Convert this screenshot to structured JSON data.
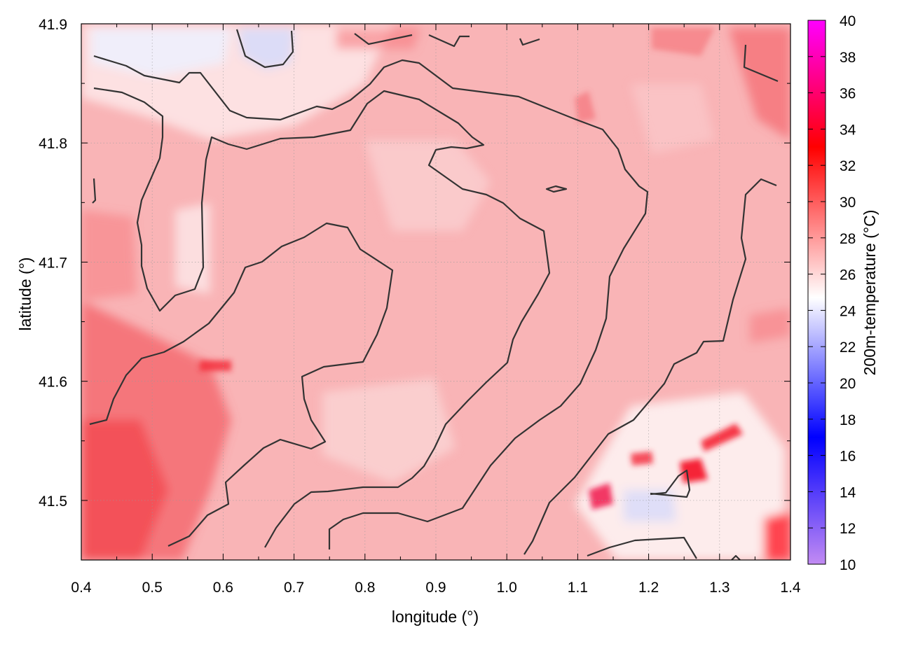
{
  "chart_data": {
    "type": "heatmap",
    "title": "",
    "xlabel": "longitude (°)",
    "ylabel": "latitude (°)",
    "colorbar_label": "200m-temperature (°C)",
    "xlim": [
      0.4,
      1.4
    ],
    "ylim": [
      41.45,
      41.9
    ],
    "x_ticks": [
      0.4,
      0.5,
      0.6,
      0.7,
      0.8,
      0.9,
      1.0,
      1.1,
      1.2,
      1.3,
      1.4
    ],
    "x_tick_labels": [
      "0.4",
      "0.5",
      "0.6",
      "0.7",
      "0.8",
      "0.9",
      "1.0",
      "1.1",
      "1.2",
      "1.3",
      "1.4"
    ],
    "y_ticks": [
      41.5,
      41.6,
      41.7,
      41.8,
      41.9
    ],
    "y_tick_labels": [
      "41.5",
      "41.6",
      "41.7",
      "41.8",
      "41.9"
    ],
    "colorbar_range": [
      10,
      40
    ],
    "colorbar_ticks": [
      10,
      12,
      14,
      16,
      18,
      20,
      22,
      24,
      26,
      28,
      30,
      32,
      34,
      36,
      38,
      40
    ],
    "colorbar_tick_labels": [
      "10",
      "12",
      "14",
      "16",
      "18",
      "20",
      "22",
      "24",
      "26",
      "28",
      "30",
      "32",
      "34",
      "36",
      "38",
      "40"
    ],
    "colormap": [
      {
        "value": 10,
        "color": "#c28bf3"
      },
      {
        "value": 17,
        "color": "#0000ff"
      },
      {
        "value": 24.7,
        "color": "#ffffff"
      },
      {
        "value": 33,
        "color": "#ff0000"
      },
      {
        "value": 40,
        "color": "#ff00ff"
      }
    ],
    "grid": true,
    "field_range_approx": [
      23,
      37
    ],
    "contour_color": "#333333"
  }
}
